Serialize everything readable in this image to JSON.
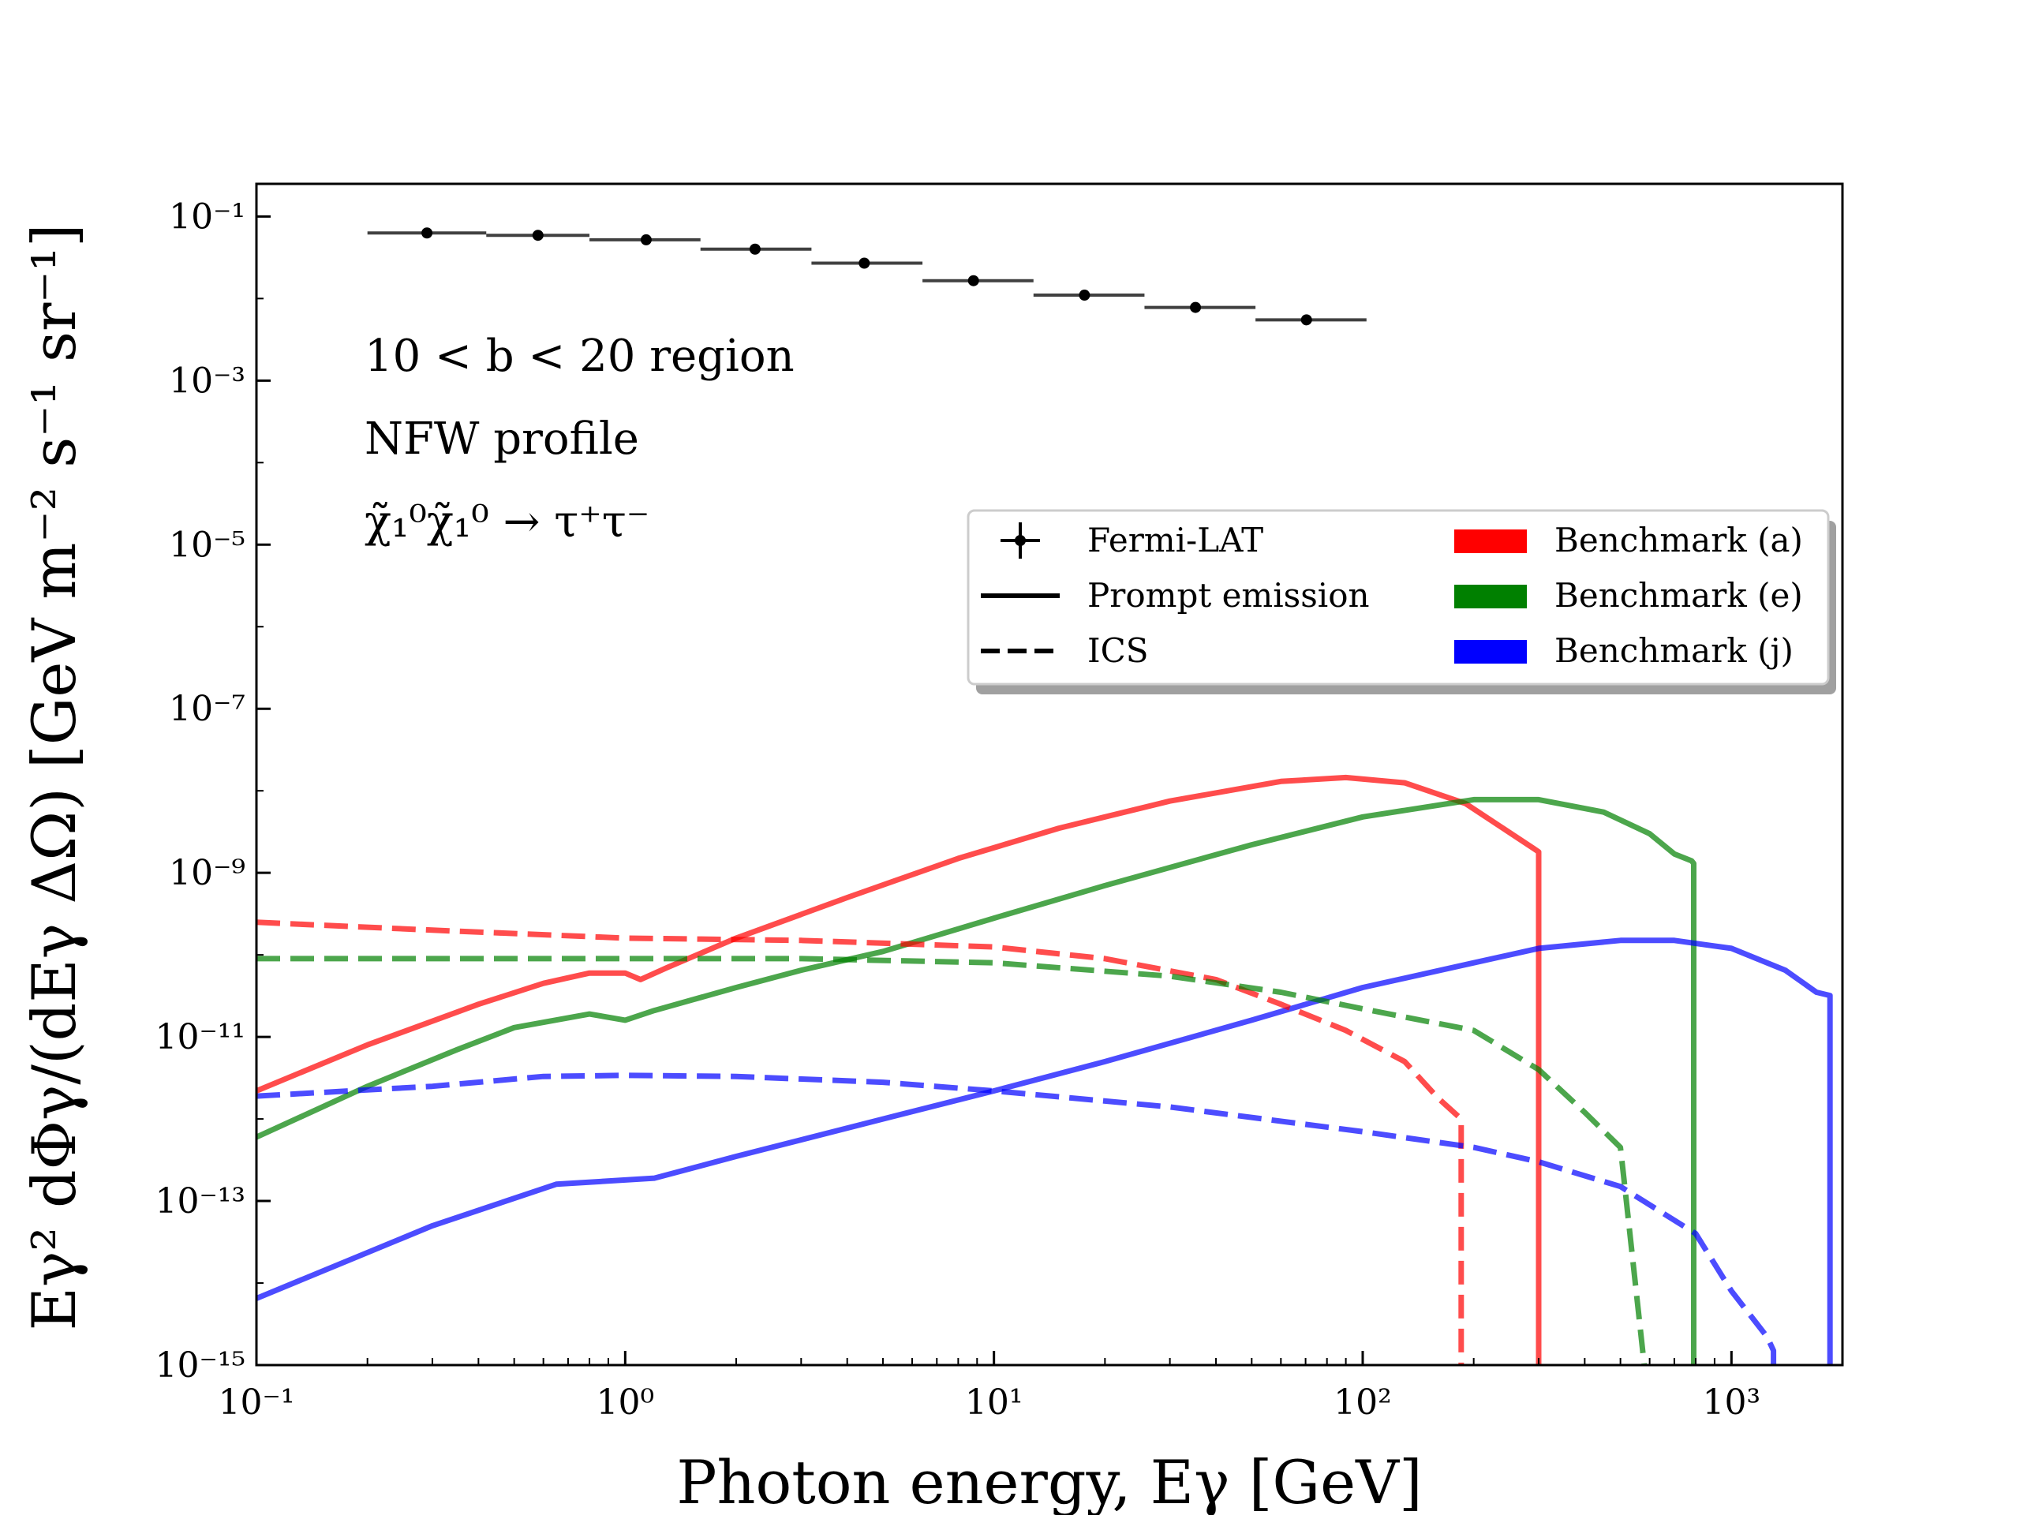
{
  "chart_data": {
    "type": "line",
    "title": "",
    "xlabel": "Photon energy, Eγ [GeV]",
    "ylabel": "Eγ² dΦγ/(dEγ ΔΩ) [GeV m⁻² s⁻¹ sr⁻¹]",
    "xscale": "log",
    "yscale": "log",
    "xlim": [
      0.1,
      2000
    ],
    "ylim": [
      1e-15,
      0.25
    ],
    "x_ticks": [
      {
        "value": 0.1,
        "label": "10⁻¹"
      },
      {
        "value": 1,
        "label": "10⁰"
      },
      {
        "value": 10,
        "label": "10¹"
      },
      {
        "value": 100,
        "label": "10²"
      },
      {
        "value": 1000,
        "label": "10³"
      }
    ],
    "y_ticks": [
      {
        "value": 0.1,
        "label": "10⁻¹"
      },
      {
        "value": 0.001,
        "label": "10⁻³"
      },
      {
        "value": 1e-05,
        "label": "10⁻⁵"
      },
      {
        "value": 1e-07,
        "label": "10⁻⁷"
      },
      {
        "value": 1e-09,
        "label": "10⁻⁹"
      },
      {
        "value": 1e-11,
        "label": "10⁻¹¹"
      },
      {
        "value": 1e-13,
        "label": "10⁻¹³"
      },
      {
        "value": 1e-15,
        "label": "10⁻¹⁵"
      }
    ],
    "annotations": [
      "10 < b < 20 region",
      "NFW profile",
      "χ̃₁⁰χ̃₁⁰ → τ⁺τ⁻"
    ],
    "legend": {
      "position": "upper-right",
      "entries": [
        {
          "label": "Fermi-LAT",
          "style": "errorbar"
        },
        {
          "label": "Prompt emission",
          "style": "solid"
        },
        {
          "label": "ICS",
          "style": "dashed"
        },
        {
          "label": "Benchmark (a)",
          "style": "patch",
          "color": "#ff0000"
        },
        {
          "label": "Benchmark (e)",
          "style": "patch",
          "color": "#008000"
        },
        {
          "label": "Benchmark (j)",
          "style": "patch",
          "color": "#0000ff"
        }
      ]
    },
    "fermi_lat": [
      {
        "x": 0.29,
        "y": 0.063,
        "xlo": 0.2,
        "xhi": 0.42
      },
      {
        "x": 0.58,
        "y": 0.059,
        "xlo": 0.42,
        "xhi": 0.8
      },
      {
        "x": 1.14,
        "y": 0.052,
        "xlo": 0.8,
        "xhi": 1.6
      },
      {
        "x": 2.25,
        "y": 0.04,
        "xlo": 1.6,
        "xhi": 3.2
      },
      {
        "x": 4.45,
        "y": 0.027,
        "xlo": 3.2,
        "xhi": 6.4
      },
      {
        "x": 8.8,
        "y": 0.0165,
        "xlo": 6.4,
        "xhi": 12.8
      },
      {
        "x": 17.6,
        "y": 0.011,
        "xlo": 12.8,
        "xhi": 25.6
      },
      {
        "x": 35.2,
        "y": 0.0078,
        "xlo": 25.6,
        "xhi": 51.2
      },
      {
        "x": 70.4,
        "y": 0.0055,
        "xlo": 51.2,
        "xhi": 102.4
      }
    ],
    "series": [
      {
        "name": "Benchmark (a) Prompt emission",
        "benchmark": "Benchmark (a)",
        "component": "Prompt emission",
        "color": "#ff0000",
        "dash": "solid",
        "x": [
          0.1,
          0.2,
          0.4,
          0.6,
          0.8,
          1.0,
          1.1,
          1.3,
          2,
          4,
          8,
          15,
          30,
          60,
          90,
          130,
          190,
          240,
          290,
          300,
          300
        ],
        "y": [
          2.2e-12,
          8e-12,
          2.5e-11,
          4.5e-11,
          6e-11,
          6e-11,
          5e-11,
          7e-11,
          1.6e-10,
          5e-10,
          1.5e-09,
          3.5e-09,
          7.5e-09,
          1.3e-08,
          1.45e-08,
          1.25e-08,
          7e-09,
          3.5e-09,
          2e-09,
          1.8e-09,
          1e-15
        ]
      },
      {
        "name": "Benchmark (e) Prompt emission",
        "benchmark": "Benchmark (e)",
        "component": "Prompt emission",
        "color": "#008000",
        "dash": "solid",
        "x": [
          0.1,
          0.2,
          0.35,
          0.5,
          0.8,
          1.0,
          1.2,
          2,
          3,
          5,
          10,
          20,
          50,
          100,
          200,
          300,
          450,
          600,
          700,
          780,
          790,
          790
        ],
        "y": [
          6e-13,
          2.5e-12,
          7e-12,
          1.3e-11,
          1.9e-11,
          1.6e-11,
          2.1e-11,
          4e-11,
          6.5e-11,
          1.1e-10,
          2.8e-10,
          7e-10,
          2.2e-09,
          4.8e-09,
          7.8e-09,
          7.8e-09,
          5.5e-09,
          3e-09,
          1.7e-09,
          1.4e-09,
          1.3e-09,
          1e-15
        ]
      },
      {
        "name": "Benchmark (j) Prompt emission",
        "benchmark": "Benchmark (j)",
        "component": "Prompt emission",
        "color": "#0000ff",
        "dash": "solid",
        "x": [
          0.1,
          0.3,
          0.65,
          1.2,
          2,
          5,
          10,
          20,
          50,
          100,
          200,
          300,
          500,
          700,
          1000,
          1400,
          1700,
          1850,
          1850
        ],
        "y": [
          6.5e-15,
          5e-14,
          1.6e-13,
          1.9e-13,
          3.5e-13,
          1e-12,
          2.2e-12,
          5e-12,
          1.6e-11,
          4e-11,
          8e-11,
          1.2e-10,
          1.5e-10,
          1.5e-10,
          1.2e-10,
          6.5e-11,
          3.5e-11,
          3.2e-11,
          1e-15
        ]
      },
      {
        "name": "Benchmark (a) ICS",
        "benchmark": "Benchmark (a)",
        "component": "ICS",
        "color": "#ff0000",
        "dash": "dashed",
        "x": [
          0.1,
          0.3,
          1,
          3,
          10,
          20,
          40,
          60,
          90,
          130,
          160,
          185,
          185
        ],
        "y": [
          2.5e-10,
          2e-10,
          1.6e-10,
          1.5e-10,
          1.25e-10,
          9e-11,
          5e-11,
          2.5e-11,
          1.2e-11,
          5e-12,
          1.8e-12,
          1e-12,
          1e-15
        ]
      },
      {
        "name": "Benchmark (e) ICS",
        "benchmark": "Benchmark (e)",
        "component": "ICS",
        "color": "#008000",
        "dash": "dashed",
        "x": [
          0.1,
          0.3,
          1,
          3,
          10,
          30,
          60,
          100,
          200,
          300,
          400,
          500,
          510,
          580
        ],
        "y": [
          9e-11,
          9e-11,
          9e-11,
          9e-11,
          8e-11,
          5.5e-11,
          3.5e-11,
          2.2e-11,
          1.2e-11,
          4e-12,
          1.2e-12,
          4.5e-13,
          2e-13,
          1e-15
        ]
      },
      {
        "name": "Benchmark (j) ICS",
        "benchmark": "Benchmark (j)",
        "component": "ICS",
        "color": "#0000ff",
        "dash": "dashed",
        "x": [
          0.1,
          0.3,
          0.6,
          1,
          2,
          5,
          10,
          30,
          100,
          200,
          300,
          500,
          800,
          1000,
          1250,
          1300,
          1300
        ],
        "y": [
          1.9e-12,
          2.5e-12,
          3.3e-12,
          3.4e-12,
          3.3e-12,
          2.8e-12,
          2.2e-12,
          1.4e-12,
          7e-13,
          4.5e-13,
          3e-13,
          1.5e-13,
          4e-14,
          8e-15,
          2.2e-15,
          1.5e-15,
          1e-15
        ]
      }
    ]
  }
}
